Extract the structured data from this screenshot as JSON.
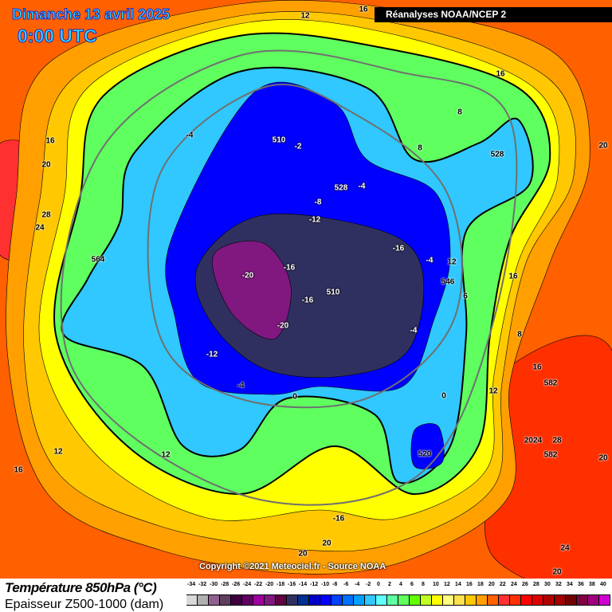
{
  "header": {
    "date": "Dimanche 13 avril 2025",
    "time": "0:00 UTC",
    "source": "Réanalyses NOAA/NCEP 2"
  },
  "map": {
    "copyright": "Copyright ©2021 Meteociel.fr - Source NOAA",
    "contour_labels": [
      "12",
      "16",
      "16",
      "8",
      "20",
      "16",
      "-4",
      "510",
      "-2",
      "8",
      "528",
      "20",
      "528",
      "-4",
      "-8",
      "-12",
      "28",
      "24",
      "-16",
      "-4",
      "12",
      "564",
      "-16",
      "-20",
      "16",
      "546",
      "510",
      "-16",
      "6",
      "-20",
      "-4",
      "8",
      "-12",
      "16",
      "582",
      "-4",
      "0",
      "0",
      "12",
      "2024",
      "28",
      "582",
      "520",
      "12",
      "12",
      "20",
      "16",
      "-16",
      "20",
      "24",
      "20",
      "20"
    ]
  },
  "legend": {
    "title_temp": "Température 850hPa (°C)",
    "title_thickness": "Epaisseur Z500-1000 (dam)",
    "scale_values": [
      "-34",
      "-32",
      "-30",
      "-28",
      "-26",
      "-24",
      "-22",
      "-20",
      "-18",
      "-16",
      "-14",
      "-12",
      "-10",
      "-8",
      "-6",
      "-4",
      "-2",
      "0",
      "2",
      "4",
      "6",
      "8",
      "10",
      "12",
      "14",
      "16",
      "18",
      "20",
      "22",
      "24",
      "26",
      "28",
      "30",
      "32",
      "34",
      "36",
      "38",
      "40"
    ],
    "scale_colors": [
      "#d9d9d9",
      "#b0b0b0",
      "#906090",
      "#603e60",
      "#400040",
      "#600060",
      "#a000a0",
      "#801880",
      "#600040",
      "#303060",
      "#003090",
      "#0000c8",
      "#0000ff",
      "#0040ff",
      "#0070ff",
      "#00a0ff",
      "#30c8ff",
      "#60ffff",
      "#60ffa0",
      "#60ff60",
      "#60ff00",
      "#c0ff20",
      "#ffff00",
      "#ffff80",
      "#ffe050",
      "#ffc800",
      "#ffa000",
      "#ff6000",
      "#ff3030",
      "#ff3000",
      "#ff0000",
      "#e00000",
      "#b00000",
      "#a00000",
      "#700000",
      "#800040",
      "#a00080",
      "#d000d0"
    ]
  }
}
